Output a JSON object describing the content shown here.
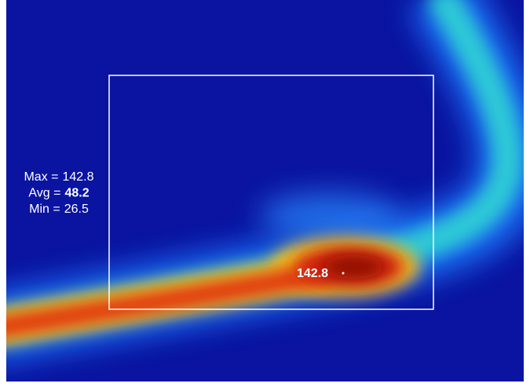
{
  "stats": [
    {
      "label": "Max =",
      "value": 142.8
    },
    {
      "label": "Avg =",
      "value": 48.2
    },
    {
      "label": "Min =",
      "value": 26.5
    }
  ],
  "hotspot": {
    "value": 142.8
  }
}
